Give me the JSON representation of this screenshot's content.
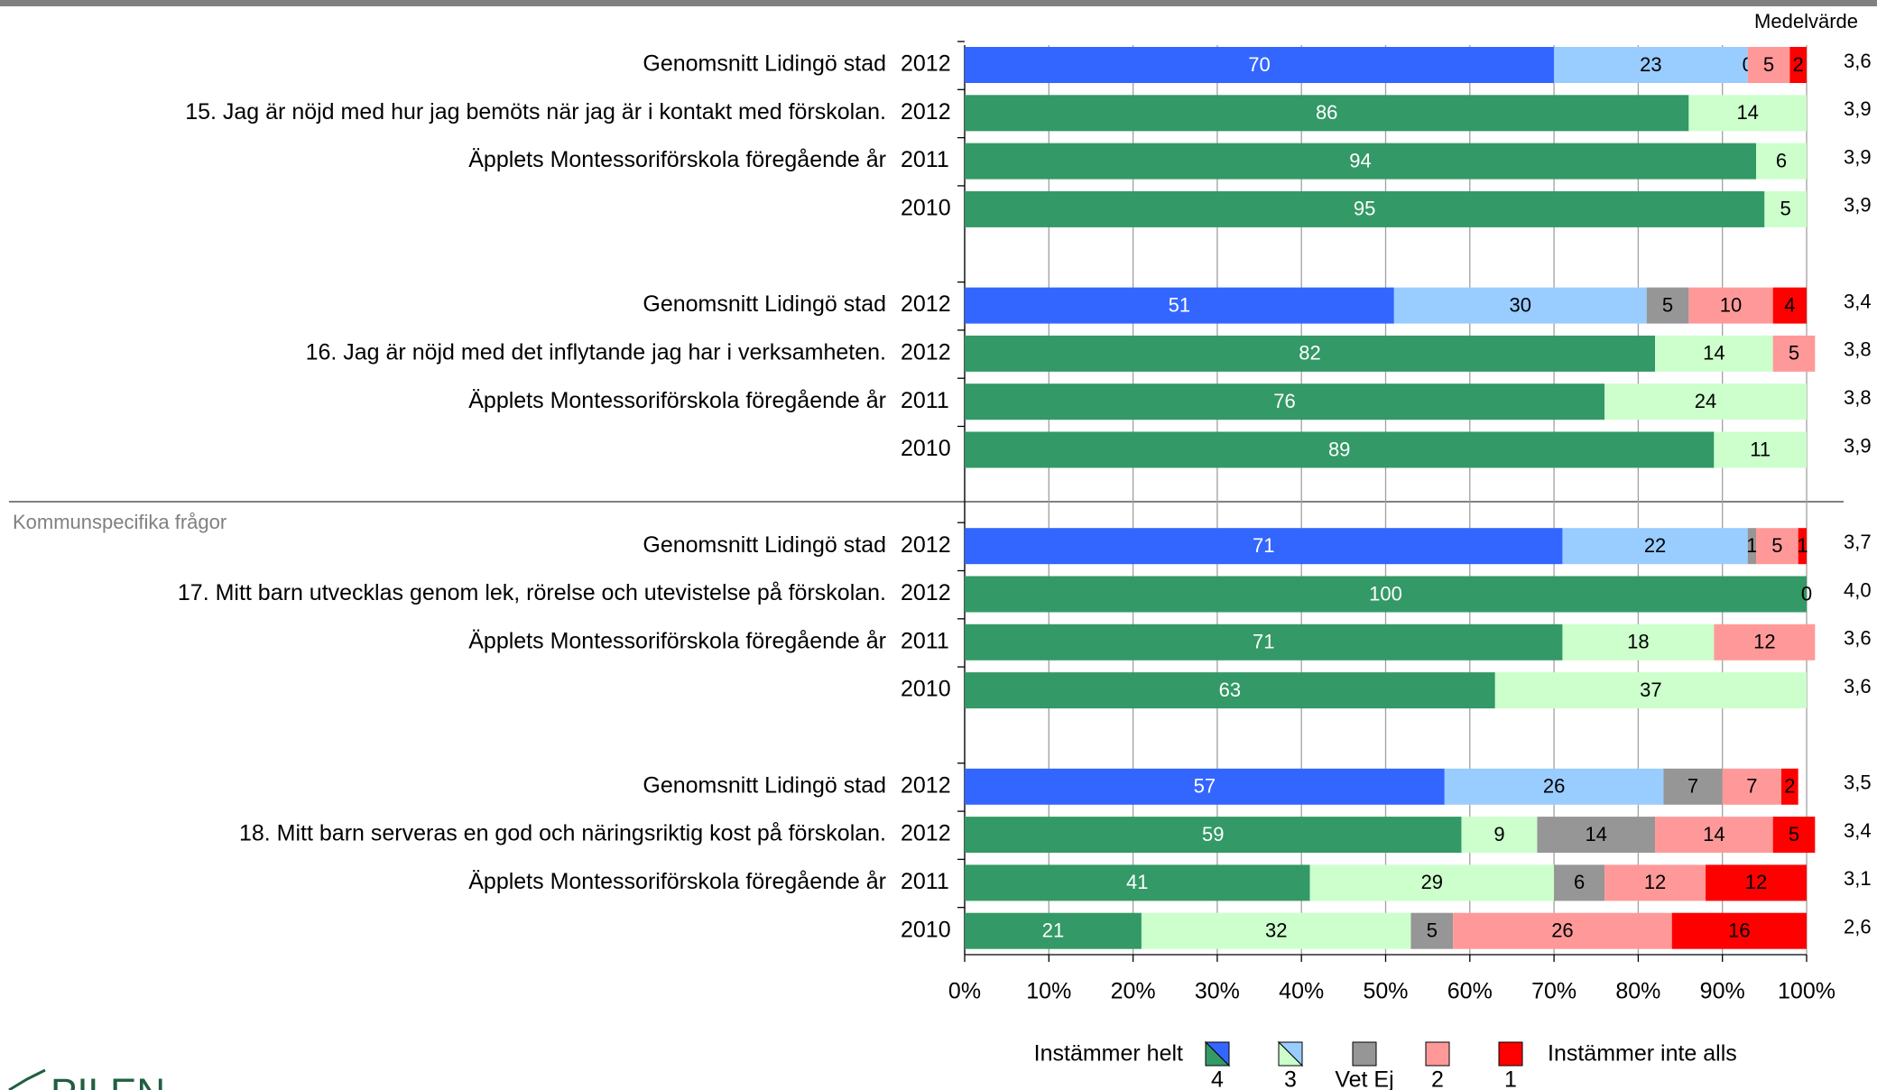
{
  "chart_data": {
    "type": "bar",
    "value_header": "Medelvärde",
    "section_label": "Kommunspecifika frågor",
    "legend_left": "Instämmer helt",
    "legend_right": "Instämmer inte alls",
    "logo": "PILEN",
    "xlim": [
      0,
      100
    ],
    "xticks": [
      {
        "value": 0,
        "label": "0%"
      },
      {
        "value": 10,
        "label": "10%"
      },
      {
        "value": 20,
        "label": "20%"
      },
      {
        "value": 30,
        "label": "30%"
      },
      {
        "value": 40,
        "label": "40%"
      },
      {
        "value": 50,
        "label": "50%"
      },
      {
        "value": 60,
        "label": "60%"
      },
      {
        "value": 70,
        "label": "70%"
      },
      {
        "value": 80,
        "label": "80%"
      },
      {
        "value": 90,
        "label": "90%"
      },
      {
        "value": 100,
        "label": "100%"
      }
    ],
    "grid": true,
    "series": [
      {
        "name": "4",
        "color": "#339966",
        "average_color": "#3366ff"
      },
      {
        "name": "3",
        "color": "#ccffcc",
        "average_color": "#99ccff"
      },
      {
        "name": "Vet Ej",
        "color": "#969696"
      },
      {
        "name": "2",
        "color": "#ff9999"
      },
      {
        "name": "1",
        "color": "#ff0000"
      }
    ],
    "groups": [
      {
        "average": {
          "label": "Genomsnitt Lidingö stad",
          "year": "2012",
          "values": [
            70,
            23,
            0,
            5,
            2
          ],
          "mean": 3.6,
          "mean_label": "3,6"
        },
        "rows": [
          {
            "label": "15.  Jag är nöjd med hur jag bemöts när jag är i kontakt med förskolan.",
            "year": "2012",
            "values": [
              86,
              14,
              null,
              null,
              null
            ],
            "mean": 3.9,
            "mean_label": "3,9"
          },
          {
            "label": "Äpplets Montessoriförskola föregående år",
            "year": "2011",
            "values": [
              94,
              6,
              null,
              null,
              null
            ],
            "mean": 3.9,
            "mean_label": "3,9"
          },
          {
            "label": null,
            "year": "2010",
            "values": [
              95,
              5,
              null,
              null,
              null
            ],
            "mean": 3.9,
            "mean_label": "3,9"
          }
        ]
      },
      {
        "average": {
          "label": "Genomsnitt Lidingö stad",
          "year": "2012",
          "values": [
            51,
            30,
            5,
            10,
            4
          ],
          "mean": 3.4,
          "mean_label": "3,4"
        },
        "rows": [
          {
            "label": "16.  Jag är nöjd med det inflytande jag har i verksamheten.",
            "year": "2012",
            "values": [
              82,
              14,
              null,
              5,
              null
            ],
            "mean": 3.8,
            "mean_label": "3,8"
          },
          {
            "label": "Äpplets Montessoriförskola föregående år",
            "year": "2011",
            "values": [
              76,
              24,
              null,
              null,
              null
            ],
            "mean": 3.8,
            "mean_label": "3,8"
          },
          {
            "label": null,
            "year": "2010",
            "values": [
              89,
              11,
              null,
              null,
              null
            ],
            "mean": 3.9,
            "mean_label": "3,9"
          }
        ]
      },
      {
        "average": {
          "label": "Genomsnitt Lidingö stad",
          "year": "2012",
          "values": [
            71,
            22,
            1,
            5,
            1
          ],
          "mean": 3.7,
          "mean_label": "3,7"
        },
        "rows": [
          {
            "label": "17.  Mitt barn utvecklas genom lek, rörelse och utevistelse på förskolan.",
            "year": "2012",
            "values": [
              100,
              0,
              null,
              null,
              null
            ],
            "mean": 4.0,
            "mean_label": "4,0"
          },
          {
            "label": "Äpplets Montessoriförskola föregående år",
            "year": "2011",
            "values": [
              71,
              18,
              null,
              12,
              null
            ],
            "mean": 3.6,
            "mean_label": "3,6"
          },
          {
            "label": null,
            "year": "2010",
            "values": [
              63,
              37,
              null,
              null,
              null
            ],
            "mean": 3.6,
            "mean_label": "3,6"
          }
        ]
      },
      {
        "average": {
          "label": "Genomsnitt Lidingö stad",
          "year": "2012",
          "values": [
            57,
            26,
            7,
            7,
            2
          ],
          "mean": 3.5,
          "mean_label": "3,5"
        },
        "rows": [
          {
            "label": "18.  Mitt barn serveras en god och näringsriktig kost på förskolan.",
            "year": "2012",
            "values": [
              59,
              9,
              14,
              14,
              5
            ],
            "mean": 3.4,
            "mean_label": "3,4"
          },
          {
            "label": "Äpplets Montessoriförskola föregående år",
            "year": "2011",
            "values": [
              41,
              29,
              6,
              12,
              12
            ],
            "mean": 3.1,
            "mean_label": "3,1"
          },
          {
            "label": null,
            "year": "2010",
            "values": [
              21,
              32,
              5,
              26,
              16
            ],
            "mean": 2.6,
            "mean_label": "2,6"
          }
        ]
      }
    ]
  }
}
